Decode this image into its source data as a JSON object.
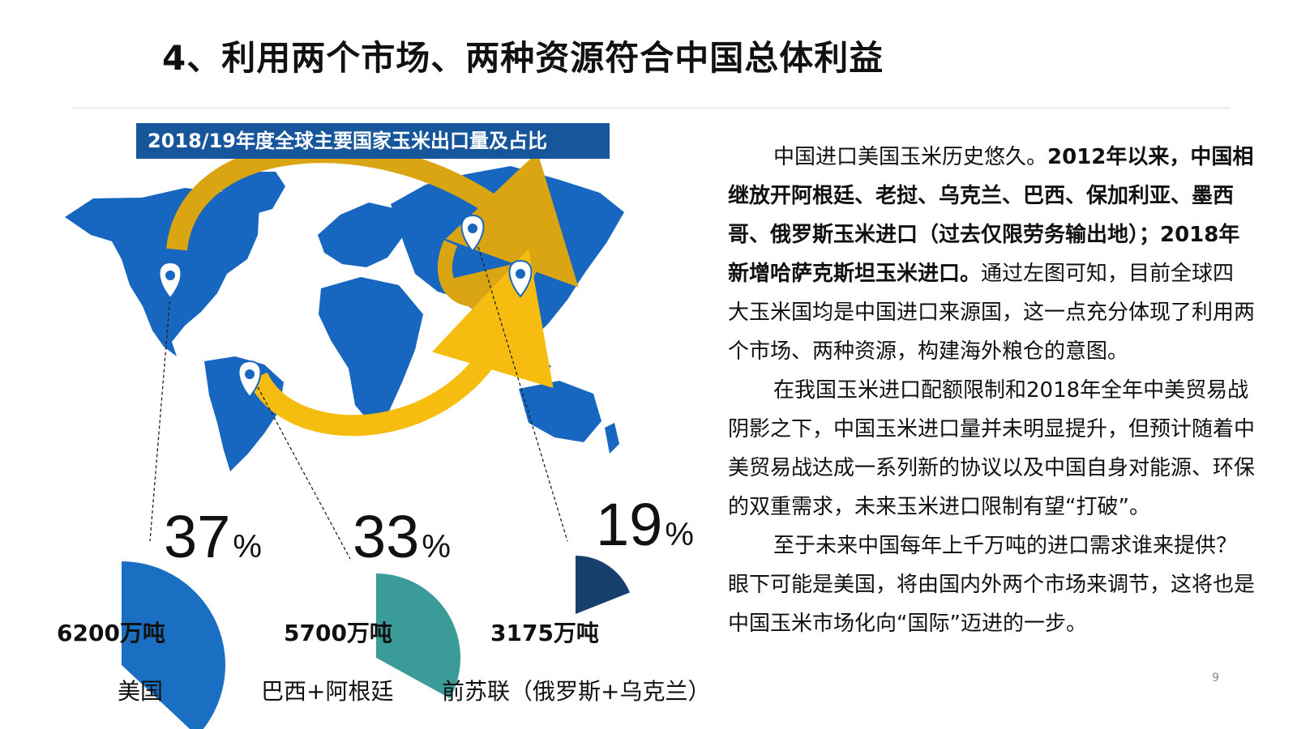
{
  "slide": {
    "title": "4、利用两个市场、两种资源符合中国总体利益",
    "page_number": "9"
  },
  "colors": {
    "map_blue": "#1766c0",
    "title_box": "#17569b",
    "arrow_gold": "#d9a512",
    "arrow_yellow": "#f6bd10",
    "usa_wedge": "#1b6fc3",
    "brazil_wedge": "#3a9b98",
    "ussr_wedge": "#163f6e"
  },
  "chart_data": {
    "type": "pie",
    "title": "2018/19年度全球主要国家玉米出口量及占比",
    "categories": [
      "美国",
      "巴西+阿根廷",
      "前苏联（俄罗斯+乌克兰）"
    ],
    "values": [
      37,
      33,
      19
    ],
    "unit": "%",
    "volumes": [
      "6200万吨",
      "5700万吨",
      "3175万吨"
    ]
  },
  "text": {
    "p1_normal": "中国进口美国玉米历史悠久。",
    "p1_bold": "2012年以来，中国相继放开阿根廷、老挝、乌克兰、巴西、保加利亚、墨西哥、俄罗斯玉米进口（过去仅限劳务输出地）；2018年新增哈萨克斯坦玉米进口。",
    "p1_tail": "通过左图可知，目前全球四大玉米国均是中国进口来源国，这一点充分体现了利用两个市场、两种资源，构建海外粮仓的意图。",
    "p2": "在我国玉米进口配额限制和2018年全年中美贸易战阴影之下，中国玉米进口量并未明显提升，但预计随着中美贸易战达成一系列新的协议以及中国自身对能源、环保的双重需求，未来玉米进口限制有望“打破”。",
    "p3": "至于未来中国每年上千万吨的进口需求谁来提供？眼下可能是美国，将由国内外两个市场来调节，这将也是中国玉米市场化向“国际”迈进的一步。"
  }
}
